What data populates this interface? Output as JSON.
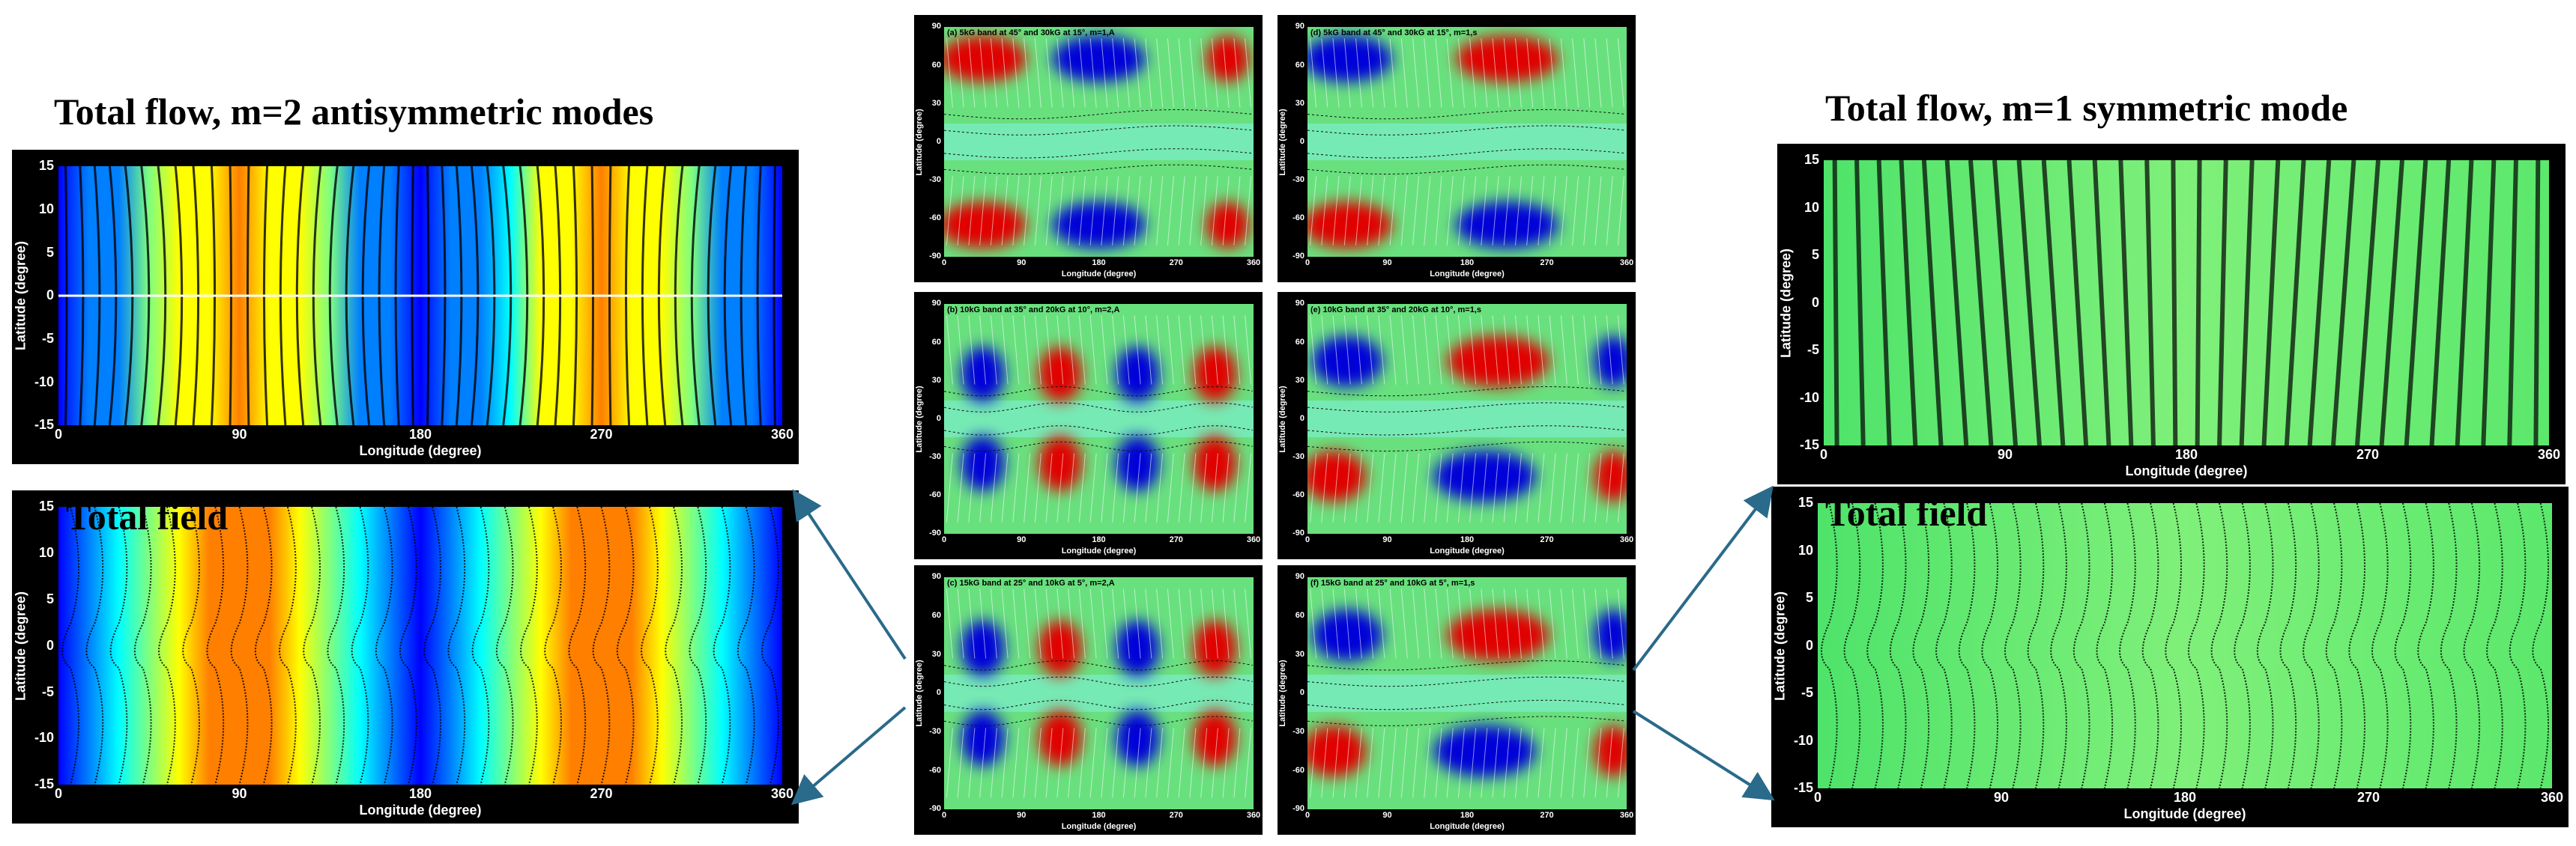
{
  "titles": {
    "left": "Total flow, m=2 antisymmetric modes",
    "right": "Total flow, m=1 symmetric mode"
  },
  "overlay_label": "Total field",
  "axis": {
    "xlabel": "Longitude (degree)",
    "ylabel": "Latitude (degree)",
    "x_ticks": [
      "0",
      "90",
      "180",
      "270",
      "360"
    ],
    "y_ticks_big": [
      "15",
      "10",
      "5",
      "0",
      "-5",
      "-10",
      "-15"
    ],
    "y_ticks_small": [
      "90",
      "60",
      "30",
      "0",
      "-30",
      "-60",
      "-90"
    ]
  },
  "colors": {
    "arrow": "#2a6a8a"
  },
  "chart_data": [
    {
      "type": "heatmap",
      "panel": "left-flow",
      "title": "Total flow, m=2 antisymmetric modes",
      "xlabel": "Longitude (degree)",
      "ylabel": "Latitude (degree)",
      "xlim": [
        0,
        360
      ],
      "ylim": [
        -15,
        15
      ],
      "colormap": "jet",
      "pattern": "vertical stripes, m=2",
      "overlay": "flow vectors"
    },
    {
      "type": "heatmap",
      "panel": "left-field",
      "title": "Total field",
      "xlabel": "Longitude (degree)",
      "ylabel": "Latitude (degree)",
      "xlim": [
        0,
        360
      ],
      "ylim": [
        -15,
        15
      ],
      "colormap": "jet",
      "pattern": "m=2",
      "overlay": "field lines"
    },
    {
      "type": "heatmap",
      "panel": "a",
      "label": "(a) 5kG band at 45° and 30kG at 15°, m=1,A",
      "xlabel": "Longitude (degree)",
      "ylabel": "Latitude (degree)",
      "xlim": [
        0,
        360
      ],
      "ylim": [
        -90,
        90
      ],
      "m": 1
    },
    {
      "type": "heatmap",
      "panel": "b",
      "label": "(b) 10kG band at 35° and 20kG at 10°, m=2,A",
      "xlabel": "Longitude (degree)",
      "ylabel": "Latitude (degree)",
      "xlim": [
        0,
        360
      ],
      "ylim": [
        -90,
        90
      ],
      "m": 2
    },
    {
      "type": "heatmap",
      "panel": "c",
      "label": "(c) 15kG band at 25° and 10kG at 5°, m=2,A",
      "xlabel": "Longitude (degree)",
      "ylabel": "Latitude (degree)",
      "xlim": [
        0,
        360
      ],
      "ylim": [
        -90,
        90
      ],
      "m": 2
    },
    {
      "type": "heatmap",
      "panel": "d",
      "label": "(d) 5kG band at 45° and 30kG at 15°, m=1,s",
      "xlabel": "Longitude (degree)",
      "ylabel": "Latitude (degree)",
      "xlim": [
        0,
        360
      ],
      "ylim": [
        -90,
        90
      ],
      "m": 1
    },
    {
      "type": "heatmap",
      "panel": "e",
      "label": "(e) 10kG band at 35° and 20kG at 10°, m=1,s",
      "xlabel": "Longitude (degree)",
      "ylabel": "Latitude (degree)",
      "xlim": [
        0,
        360
      ],
      "ylim": [
        -90,
        90
      ],
      "m": 1
    },
    {
      "type": "heatmap",
      "panel": "f",
      "label": "(f) 15kG band at 25° and 10kG at 5°, m=1,s",
      "xlabel": "Longitude (degree)",
      "ylabel": "Latitude (degree)",
      "xlim": [
        0,
        360
      ],
      "ylim": [
        -90,
        90
      ],
      "m": 1
    },
    {
      "type": "heatmap",
      "panel": "right-flow",
      "title": "Total flow, m=1 symmetric mode",
      "xlabel": "Longitude (degree)",
      "ylabel": "Latitude (degree)",
      "xlim": [
        0,
        360
      ],
      "ylim": [
        -15,
        15
      ],
      "colormap": "green",
      "overlay": "flow vectors"
    },
    {
      "type": "heatmap",
      "panel": "right-field",
      "title": "Total field",
      "xlabel": "Longitude (degree)",
      "ylabel": "Latitude (degree)",
      "xlim": [
        0,
        360
      ],
      "ylim": [
        -15,
        15
      ],
      "colormap": "green",
      "overlay": "field lines"
    }
  ]
}
